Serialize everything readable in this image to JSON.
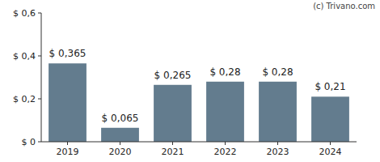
{
  "chart_data": {
    "type": "bar",
    "annotations": [
      "(c) Trivano.com"
    ],
    "categories": [
      "2019",
      "2020",
      "2021",
      "2022",
      "2023",
      "2024"
    ],
    "values": [
      0.365,
      0.065,
      0.265,
      0.28,
      0.28,
      0.21
    ],
    "value_labels": [
      "$ 0,365",
      "$ 0,065",
      "$ 0,265",
      "$ 0,28",
      "$ 0,28",
      "$ 0,21"
    ],
    "data_labels": true,
    "color": "#637c8e",
    "ylim": [
      0,
      0.6
    ],
    "yticks": [
      {
        "value": 0,
        "label": "$ 0"
      },
      {
        "value": 0.2,
        "label": "$ 0,2"
      },
      {
        "value": 0.4,
        "label": "$ 0,4"
      },
      {
        "value": 0.6,
        "label": "$ 0,6"
      }
    ],
    "grid": false
  }
}
